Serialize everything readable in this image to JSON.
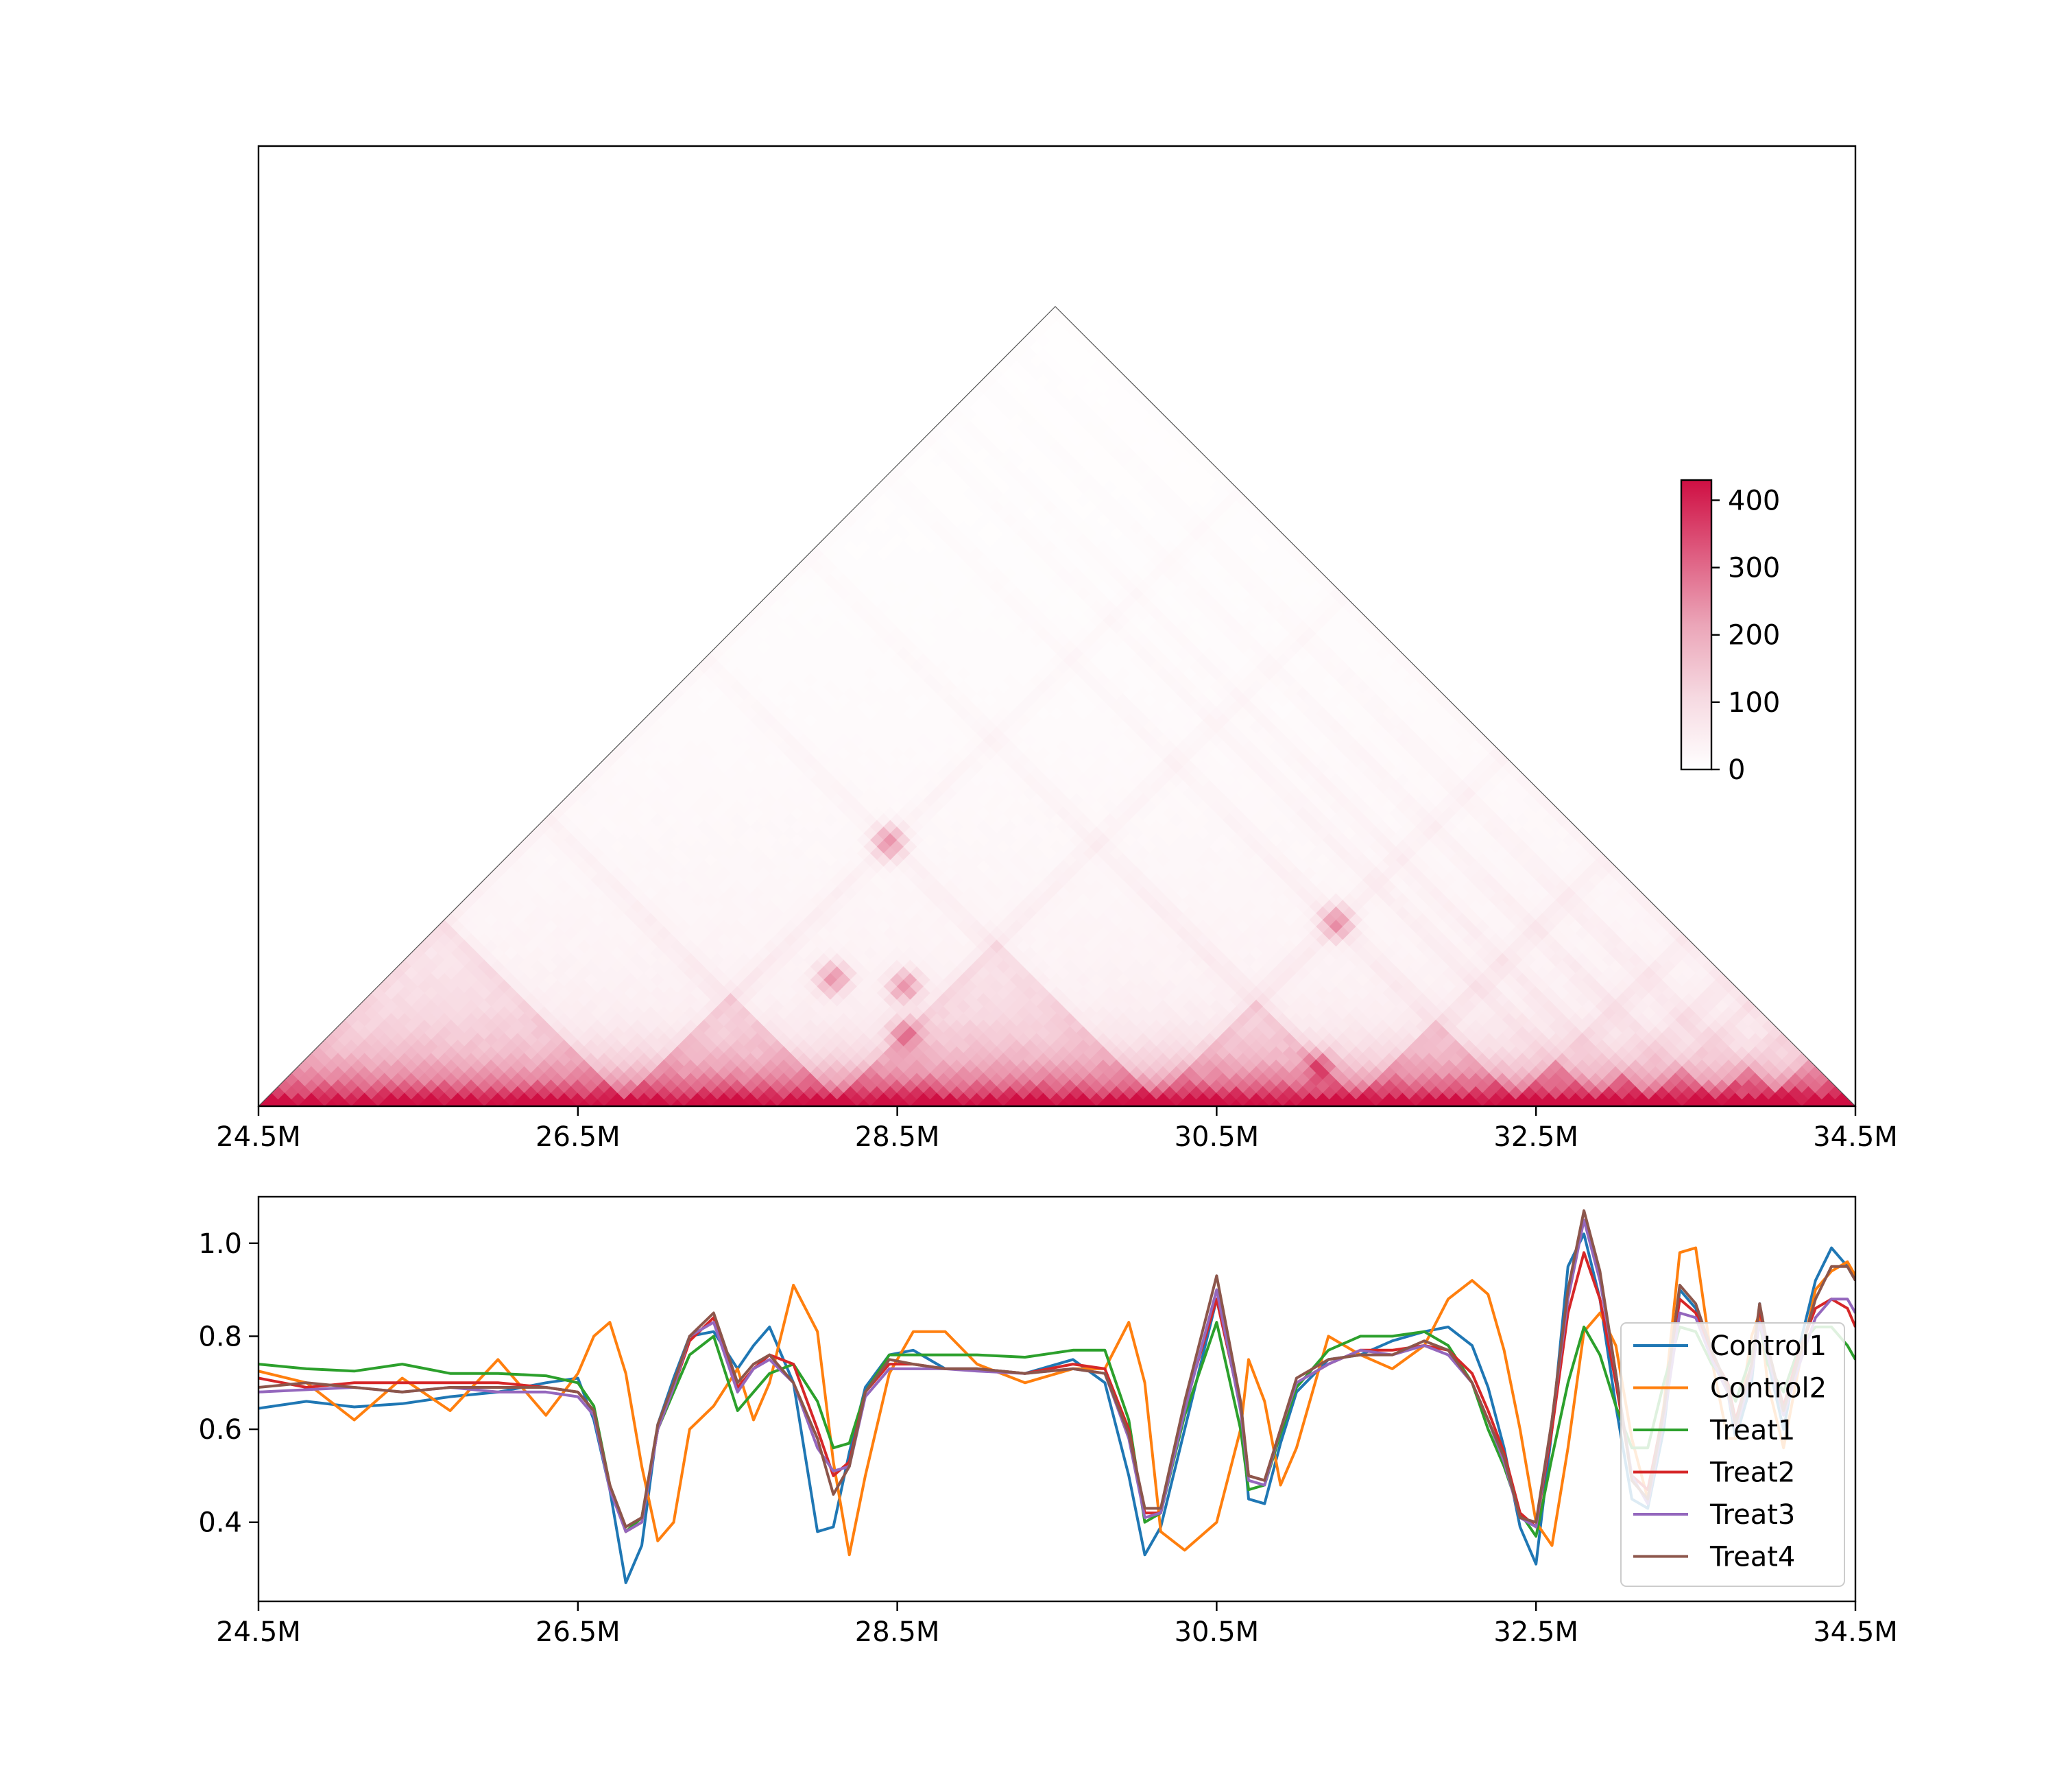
{
  "chart_data": [
    {
      "type": "heatmap",
      "title": "",
      "xlabel": "",
      "ylabel": "",
      "x_range_Mb": [
        24.5,
        34.5
      ],
      "x_tick_labels": [
        "24.5M",
        "26.5M",
        "28.5M",
        "30.5M",
        "32.5M",
        "34.5M"
      ],
      "x_tick_values_Mb": [
        24.5,
        26.5,
        28.5,
        30.5,
        32.5,
        34.5
      ],
      "colormap": {
        "low": "#ffffff",
        "high": "#cf0f43"
      },
      "colorbar": {
        "vmin": 0,
        "vmax": 430,
        "tick_labels": [
          "0",
          "100",
          "200",
          "300",
          "400"
        ],
        "tick_values": [
          0,
          100,
          200,
          300,
          400
        ]
      },
      "grid": false,
      "tad_boundaries_Mb": [
        24.5,
        26.8,
        28.1,
        30.1,
        31.4,
        32.4,
        32.9,
        33.2,
        33.6,
        34.0,
        34.5
      ],
      "loops_Mb": [
        [
          27.3,
          28.9
        ],
        [
          28.1,
          29.0
        ],
        [
          26.8,
          30.1
        ],
        [
          30.9,
          31.4
        ],
        [
          30.1,
          32.4
        ],
        [
          27.8,
          29.3
        ]
      ]
    },
    {
      "type": "line",
      "title": "",
      "xlabel": "",
      "ylabel": "",
      "xlim": [
        24.5,
        34.5
      ],
      "ylim": [
        0.23,
        1.1
      ],
      "x_tick_labels": [
        "24.5M",
        "26.5M",
        "28.5M",
        "30.5M",
        "32.5M",
        "34.5M"
      ],
      "x_tick_values": [
        24.5,
        26.5,
        28.5,
        30.5,
        32.5,
        34.5
      ],
      "y_tick_labels": [
        "0.4",
        "0.6",
        "0.8",
        "1.0"
      ],
      "y_tick_values": [
        0.4,
        0.6,
        0.8,
        1.0
      ],
      "grid": false,
      "legend_position": "lower-right",
      "x": [
        24.5,
        24.8,
        25.1,
        25.4,
        25.7,
        26.0,
        26.3,
        26.5,
        26.6,
        26.7,
        26.8,
        26.9,
        27.0,
        27.1,
        27.2,
        27.35,
        27.5,
        27.6,
        27.7,
        27.85,
        28.0,
        28.1,
        28.2,
        28.3,
        28.45,
        28.6,
        28.8,
        29.0,
        29.3,
        29.6,
        29.8,
        29.95,
        30.05,
        30.15,
        30.3,
        30.5,
        30.65,
        30.7,
        30.8,
        30.9,
        31.0,
        31.2,
        31.4,
        31.6,
        31.8,
        31.95,
        32.1,
        32.2,
        32.3,
        32.4,
        32.5,
        32.6,
        32.7,
        32.8,
        32.9,
        33.0,
        33.1,
        33.2,
        33.3,
        33.4,
        33.5,
        33.6,
        33.7,
        33.75,
        33.85,
        33.9,
        33.95,
        34.05,
        34.15,
        34.25,
        34.35,
        34.45,
        34.5
      ],
      "series": [
        {
          "name": "Control1",
          "color": "#1f77b4",
          "values": [
            0.645,
            0.66,
            0.648,
            0.655,
            0.67,
            0.68,
            0.7,
            0.71,
            0.62,
            0.47,
            0.27,
            0.35,
            0.61,
            0.71,
            0.8,
            0.81,
            0.73,
            0.78,
            0.82,
            0.7,
            0.38,
            0.39,
            0.55,
            0.69,
            0.76,
            0.77,
            0.73,
            0.73,
            0.72,
            0.75,
            0.7,
            0.5,
            0.33,
            0.39,
            0.6,
            0.88,
            0.65,
            0.45,
            0.44,
            0.57,
            0.68,
            0.75,
            0.76,
            0.79,
            0.81,
            0.82,
            0.78,
            0.69,
            0.56,
            0.39,
            0.31,
            0.6,
            0.95,
            1.02,
            0.88,
            0.65,
            0.45,
            0.43,
            0.6,
            0.9,
            0.86,
            0.75,
            0.68,
            0.58,
            0.7,
            0.87,
            0.75,
            0.6,
            0.78,
            0.92,
            0.99,
            0.95,
            0.92
          ]
        },
        {
          "name": "Control2",
          "color": "#ff7f0e",
          "values": [
            0.725,
            0.7,
            0.62,
            0.71,
            0.64,
            0.75,
            0.63,
            0.72,
            0.8,
            0.83,
            0.72,
            0.52,
            0.36,
            0.4,
            0.6,
            0.65,
            0.73,
            0.62,
            0.7,
            0.91,
            0.81,
            0.53,
            0.33,
            0.5,
            0.72,
            0.81,
            0.81,
            0.74,
            0.7,
            0.73,
            0.73,
            0.83,
            0.7,
            0.38,
            0.34,
            0.4,
            0.6,
            0.75,
            0.66,
            0.48,
            0.56,
            0.8,
            0.76,
            0.73,
            0.78,
            0.88,
            0.92,
            0.89,
            0.77,
            0.6,
            0.4,
            0.35,
            0.56,
            0.81,
            0.85,
            0.78,
            0.58,
            0.45,
            0.65,
            0.98,
            0.99,
            0.75,
            0.58,
            0.58,
            0.8,
            0.85,
            0.7,
            0.56,
            0.74,
            0.9,
            0.94,
            0.96,
            0.93
          ]
        },
        {
          "name": "Treat1",
          "color": "#2ca02c",
          "values": [
            0.74,
            0.73,
            0.725,
            0.74,
            0.72,
            0.72,
            0.715,
            0.7,
            0.65,
            0.48,
            0.38,
            0.41,
            0.6,
            0.68,
            0.76,
            0.8,
            0.64,
            0.68,
            0.72,
            0.74,
            0.66,
            0.56,
            0.57,
            0.68,
            0.76,
            0.76,
            0.76,
            0.76,
            0.755,
            0.77,
            0.77,
            0.62,
            0.4,
            0.42,
            0.63,
            0.83,
            0.6,
            0.47,
            0.48,
            0.59,
            0.69,
            0.77,
            0.8,
            0.8,
            0.81,
            0.78,
            0.7,
            0.6,
            0.52,
            0.42,
            0.37,
            0.54,
            0.7,
            0.82,
            0.76,
            0.65,
            0.56,
            0.56,
            0.7,
            0.82,
            0.81,
            0.74,
            0.7,
            0.66,
            0.76,
            0.83,
            0.74,
            0.68,
            0.78,
            0.82,
            0.82,
            0.78,
            0.75
          ]
        },
        {
          "name": "Treat2",
          "color": "#d62728",
          "values": [
            0.71,
            0.69,
            0.7,
            0.7,
            0.7,
            0.7,
            0.69,
            0.68,
            0.64,
            0.48,
            0.38,
            0.4,
            0.6,
            0.69,
            0.79,
            0.84,
            0.69,
            0.73,
            0.76,
            0.74,
            0.6,
            0.5,
            0.53,
            0.68,
            0.74,
            0.74,
            0.73,
            0.73,
            0.72,
            0.74,
            0.73,
            0.6,
            0.42,
            0.42,
            0.65,
            0.88,
            0.65,
            0.5,
            0.49,
            0.6,
            0.7,
            0.74,
            0.77,
            0.77,
            0.78,
            0.77,
            0.72,
            0.64,
            0.55,
            0.42,
            0.39,
            0.6,
            0.85,
            0.98,
            0.88,
            0.7,
            0.5,
            0.47,
            0.64,
            0.88,
            0.85,
            0.76,
            0.7,
            0.62,
            0.74,
            0.86,
            0.77,
            0.65,
            0.77,
            0.86,
            0.88,
            0.86,
            0.82
          ]
        },
        {
          "name": "Treat3",
          "color": "#9467bd",
          "values": [
            0.68,
            0.685,
            0.69,
            0.68,
            0.69,
            0.68,
            0.68,
            0.67,
            0.63,
            0.47,
            0.38,
            0.4,
            0.6,
            0.69,
            0.8,
            0.83,
            0.68,
            0.73,
            0.75,
            0.7,
            0.56,
            0.51,
            0.52,
            0.67,
            0.73,
            0.73,
            0.73,
            0.725,
            0.72,
            0.73,
            0.72,
            0.58,
            0.41,
            0.42,
            0.64,
            0.9,
            0.64,
            0.49,
            0.48,
            0.6,
            0.7,
            0.74,
            0.77,
            0.76,
            0.78,
            0.76,
            0.7,
            0.62,
            0.53,
            0.41,
            0.39,
            0.62,
            0.88,
            1.05,
            0.92,
            0.72,
            0.5,
            0.44,
            0.62,
            0.85,
            0.84,
            0.75,
            0.68,
            0.6,
            0.72,
            0.83,
            0.76,
            0.63,
            0.74,
            0.84,
            0.88,
            0.88,
            0.85
          ]
        },
        {
          "name": "Treat4",
          "color": "#8c564b",
          "values": [
            0.69,
            0.7,
            0.69,
            0.68,
            0.69,
            0.69,
            0.69,
            0.68,
            0.64,
            0.48,
            0.39,
            0.41,
            0.61,
            0.7,
            0.8,
            0.85,
            0.7,
            0.74,
            0.76,
            0.7,
            0.58,
            0.46,
            0.52,
            0.68,
            0.75,
            0.74,
            0.73,
            0.73,
            0.72,
            0.73,
            0.72,
            0.59,
            0.43,
            0.43,
            0.66,
            0.93,
            0.66,
            0.5,
            0.49,
            0.6,
            0.71,
            0.75,
            0.76,
            0.76,
            0.79,
            0.77,
            0.7,
            0.62,
            0.54,
            0.41,
            0.4,
            0.62,
            0.9,
            1.07,
            0.94,
            0.72,
            0.49,
            0.45,
            0.64,
            0.91,
            0.87,
            0.77,
            0.69,
            0.61,
            0.74,
            0.87,
            0.78,
            0.64,
            0.76,
            0.88,
            0.95,
            0.95,
            0.92
          ]
        }
      ]
    }
  ]
}
